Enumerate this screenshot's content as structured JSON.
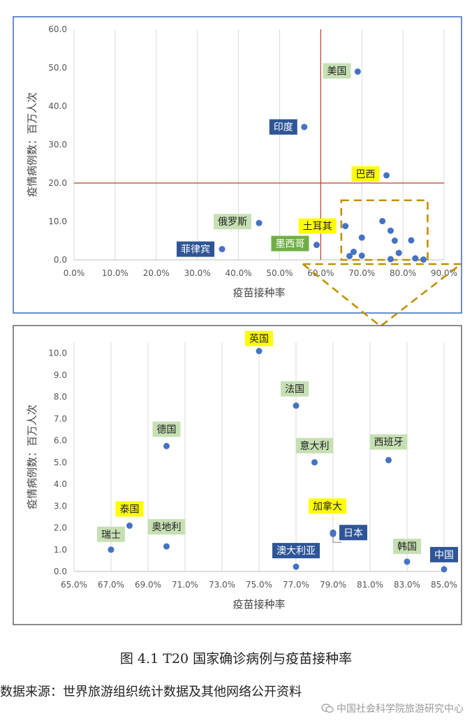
{
  "chart_data": [
    {
      "type": "scatter",
      "xlabel": "疫苗接种率",
      "ylabel": "疫情病例数：百万人次",
      "xlim": [
        0,
        90
      ],
      "ylim": [
        0,
        60
      ],
      "x_ticks": [
        "0.0%",
        "10.0%",
        "20.0%",
        "30.0%",
        "40.0%",
        "50.0%",
        "60.0%",
        "70.0%",
        "80.0%",
        "90.0%"
      ],
      "y_ticks": [
        "0.0",
        "10.0",
        "20.0",
        "30.0",
        "40.0",
        "50.0",
        "60.0"
      ],
      "grid": "vertical",
      "reference_lines": {
        "x": 60,
        "y": 20,
        "color": "#c0392b"
      },
      "zoom_box": {
        "x": [
          65,
          86
        ],
        "y": [
          0,
          15.5
        ]
      },
      "points": [
        {
          "label": "美国",
          "x": 69.0,
          "y": 49.0
        },
        {
          "label": "印度",
          "x": 56.0,
          "y": 34.6
        },
        {
          "label": "巴西",
          "x": 76.0,
          "y": 22.0
        },
        {
          "label": "土耳其",
          "x": 66.0,
          "y": 8.8
        },
        {
          "label": "俄罗斯",
          "x": 45.0,
          "y": 9.6
        },
        {
          "label": "墨西哥",
          "x": 59.0,
          "y": 3.9
        },
        {
          "label": "菲律宾",
          "x": 36.0,
          "y": 2.8
        },
        {
          "label": "",
          "x": 75.0,
          "y": 10.1
        },
        {
          "label": "",
          "x": 77.0,
          "y": 7.6
        },
        {
          "label": "",
          "x": 70.0,
          "y": 5.8
        },
        {
          "label": "",
          "x": 78.0,
          "y": 5.0
        },
        {
          "label": "",
          "x": 82.0,
          "y": 5.1
        },
        {
          "label": "",
          "x": 68.0,
          "y": 2.1
        },
        {
          "label": "",
          "x": 67.0,
          "y": 1.0
        },
        {
          "label": "",
          "x": 70.0,
          "y": 1.1
        },
        {
          "label": "",
          "x": 79.0,
          "y": 1.8
        },
        {
          "label": "",
          "x": 77.0,
          "y": 0.2
        },
        {
          "label": "",
          "x": 83.0,
          "y": 0.4
        },
        {
          "label": "",
          "x": 85.0,
          "y": 0.1
        }
      ]
    },
    {
      "type": "scatter",
      "xlabel": "疫苗接种率",
      "ylabel": "疫情病例数：百万人次",
      "xlim": [
        65,
        85
      ],
      "ylim": [
        0,
        10.5
      ],
      "x_ticks": [
        "65.0%",
        "67.0%",
        "69.0%",
        "71.0%",
        "73.0%",
        "75.0%",
        "77.0%",
        "79.0%",
        "81.0%",
        "83.0%",
        "85.0%"
      ],
      "y_ticks": [
        "0.0",
        "1.0",
        "2.0",
        "3.0",
        "4.0",
        "5.0",
        "6.0",
        "7.0",
        "8.0",
        "9.0",
        "10.0"
      ],
      "grid": "vertical",
      "points": [
        {
          "label": "英国",
          "x": 75.0,
          "y": 10.1
        },
        {
          "label": "法国",
          "x": 77.0,
          "y": 7.6
        },
        {
          "label": "德国",
          "x": 70.0,
          "y": 5.75
        },
        {
          "label": "意大利",
          "x": 78.0,
          "y": 5.0
        },
        {
          "label": "西班牙",
          "x": 82.0,
          "y": 5.1
        },
        {
          "label": "泰国",
          "x": 68.0,
          "y": 2.1
        },
        {
          "label": "加拿大",
          "x": 79.0,
          "y": 1.78
        },
        {
          "label": "日本",
          "x": 79.0,
          "y": 1.72
        },
        {
          "label": "瑞士",
          "x": 67.0,
          "y": 1.0
        },
        {
          "label": "奥地利",
          "x": 70.0,
          "y": 1.15
        },
        {
          "label": "澳大利亚",
          "x": 77.0,
          "y": 0.22
        },
        {
          "label": "韩国",
          "x": 83.0,
          "y": 0.45
        },
        {
          "label": "中国",
          "x": 85.0,
          "y": 0.1
        }
      ]
    }
  ],
  "caption": "图 4.1   T20 国家确诊病例与疫苗接种率",
  "source": "数据来源：世界旅游组织统计数据及其他网络公开资料",
  "watermark": "中国社会科学院旅游研究中心",
  "colors": {
    "point": "#4472c4",
    "tag_yellow": "#ffff00",
    "tag_green": "#c6e0b4",
    "tag_blue": "#2f5597",
    "tag_dark_green": "#70ad47",
    "reference_line": "#c0392b",
    "zoom_box": "#bf9000",
    "frame_top": "#4472c4",
    "frame_bottom": "#595959"
  }
}
